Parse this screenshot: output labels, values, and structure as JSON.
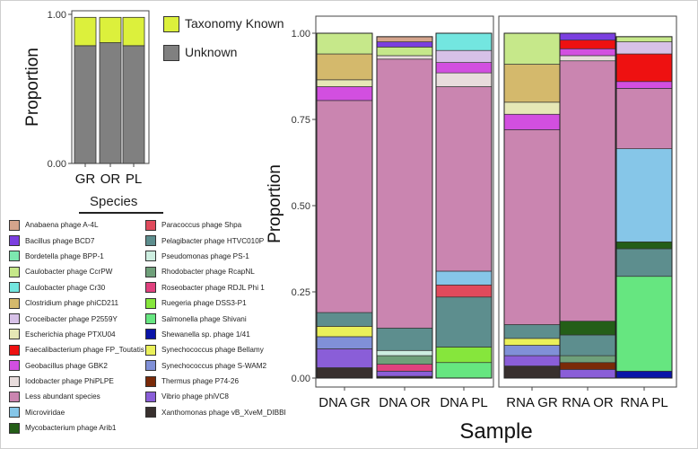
{
  "chart_data": [
    {
      "type": "bar",
      "stacked": true,
      "title": "",
      "xlabel": "",
      "ylabel": "Proportion",
      "ylim": [
        0,
        1
      ],
      "yticks": [
        "0.00",
        "1.00"
      ],
      "categories": [
        "GR",
        "OR",
        "PL"
      ],
      "series": [
        {
          "name": "Unknown",
          "color": "#808080",
          "values": [
            0.79,
            0.81,
            0.79
          ]
        },
        {
          "name": "Taxonomy Known",
          "color": "#dcf03c",
          "values": [
            0.19,
            0.17,
            0.19
          ]
        }
      ],
      "legend": [
        "Taxonomy Known",
        "Unknown"
      ]
    },
    {
      "type": "bar",
      "stacked": true,
      "xlabel": "Sample",
      "ylabel": "Proportion",
      "ylim": [
        0,
        1
      ],
      "yticks": [
        "0.00",
        "0.25",
        "0.50",
        "0.75",
        "1.00"
      ],
      "panels": [
        {
          "name": "DNA",
          "categories": [
            "DNA GR",
            "DNA OR",
            "DNA PL"
          ]
        },
        {
          "name": "RNA",
          "categories": [
            "RNA GR",
            "RNA OR",
            "RNA PL"
          ]
        }
      ],
      "categories": [
        "DNA GR",
        "DNA OR",
        "DNA PL",
        "RNA GR",
        "RNA OR",
        "RNA PL"
      ],
      "legend_title": "Species",
      "species": [
        {
          "name": "Anabaena phage A-4L",
          "color": "#d4a48c"
        },
        {
          "name": "Bacillus phage BCD7",
          "color": "#7b3fe0"
        },
        {
          "name": "Bordetella phage BPP-1",
          "color": "#7de8b0"
        },
        {
          "name": "Caulobacter phage CcrPW",
          "color": "#c6e88a"
        },
        {
          "name": "Caulobacter phage Cr30",
          "color": "#73e6e0"
        },
        {
          "name": "Clostridium phage phiCD211",
          "color": "#d4b96c"
        },
        {
          "name": "Croceibacter phage P2559Y",
          "color": "#d7c1e8"
        },
        {
          "name": "Escherichia phage PTXU04",
          "color": "#e6e8b6"
        },
        {
          "name": "Faecalibacterium phage FP_Toutatis",
          "color": "#ee1111"
        },
        {
          "name": "Geobacillus phage GBK2",
          "color": "#d24fe0"
        },
        {
          "name": "Iodobacter phage PhiPLPE",
          "color": "#e8dcdc"
        },
        {
          "name": "Less abundant species",
          "color": "#ca85b0"
        },
        {
          "name": "Microviridae",
          "color": "#86c6e8"
        },
        {
          "name": "Mycobacterium phage Arib1",
          "color": "#245e18"
        },
        {
          "name": "Paracoccus phage Shpa",
          "color": "#e04a5c"
        },
        {
          "name": "Pelagibacter phage HTVC010P",
          "color": "#5d8e8e"
        },
        {
          "name": "Pseudomonas phage PS-1",
          "color": "#cdeee0"
        },
        {
          "name": "Rhodobacter phage RcapNL",
          "color": "#6fa07a"
        },
        {
          "name": "Roseobacter phage RDJL Phi 1",
          "color": "#e0417e"
        },
        {
          "name": "Ruegeria phage DSS3-P1",
          "color": "#86e63c"
        },
        {
          "name": "Salmonella phage Shivani",
          "color": "#66e680"
        },
        {
          "name": "Shewanella sp. phage 1/41",
          "color": "#0a14a8"
        },
        {
          "name": "Synechococcus phage Bellamy",
          "color": "#eaf05a"
        },
        {
          "name": "Synechococcus phage S-WAM2",
          "color": "#8090d8"
        },
        {
          "name": "Thermus phage P74-26",
          "color": "#7a2a08"
        },
        {
          "name": "Vibrio phage phiVC8",
          "color": "#8a5ed8"
        },
        {
          "name": "Xanthomonas phage vB_XveM_DIBBI",
          "color": "#38302e"
        }
      ],
      "stacks": [
        [
          {
            "species": "Xanthomonas phage vB_XveM_DIBBI",
            "value": 0.03
          },
          {
            "species": "Vibrio phage phiVC8",
            "value": 0.055
          },
          {
            "species": "Synechococcus phage S-WAM2",
            "value": 0.035
          },
          {
            "species": "Synechococcus phage Bellamy",
            "value": 0.03
          },
          {
            "species": "Pelagibacter phage HTVC010P",
            "value": 0.04
          },
          {
            "species": "Less abundant species",
            "value": 0.615
          },
          {
            "species": "Geobacillus phage GBK2",
            "value": 0.04
          },
          {
            "species": "Escherichia phage PTXU04",
            "value": 0.02
          },
          {
            "species": "Clostridium phage phiCD211",
            "value": 0.075
          },
          {
            "species": "Caulobacter phage CcrPW",
            "value": 0.06
          }
        ],
        [
          {
            "species": "Xanthomonas phage vB_XveM_DIBBI",
            "value": 0.005
          },
          {
            "species": "Vibrio phage phiVC8",
            "value": 0.015
          },
          {
            "species": "Roseobacter phage RDJL Phi 1",
            "value": 0.02
          },
          {
            "species": "Rhodobacter phage RcapNL",
            "value": 0.025
          },
          {
            "species": "Pseudomonas phage PS-1",
            "value": 0.015
          },
          {
            "species": "Pelagibacter phage HTVC010P",
            "value": 0.065
          },
          {
            "species": "Less abundant species",
            "value": 0.78
          },
          {
            "species": "Iodobacter phage PhiPLPE",
            "value": 0.01
          },
          {
            "species": "Caulobacter phage CcrPW",
            "value": 0.025
          },
          {
            "species": "Bacillus phage BCD7",
            "value": 0.015
          },
          {
            "species": "Anabaena phage A-4L",
            "value": 0.015
          }
        ],
        [
          {
            "species": "Salmonella phage Shivani",
            "value": 0.045
          },
          {
            "species": "Ruegeria phage DSS3-P1",
            "value": 0.045
          },
          {
            "species": "Pelagibacter phage HTVC010P",
            "value": 0.145
          },
          {
            "species": "Paracoccus phage Shpa",
            "value": 0.035
          },
          {
            "species": "Microviridae",
            "value": 0.04
          },
          {
            "species": "Less abundant species",
            "value": 0.535
          },
          {
            "species": "Iodobacter phage PhiPLPE",
            "value": 0.04
          },
          {
            "species": "Geobacillus phage GBK2",
            "value": 0.03
          },
          {
            "species": "Croceibacter phage P2559Y",
            "value": 0.035
          },
          {
            "species": "Caulobacter phage Cr30",
            "value": 0.05
          }
        ],
        [
          {
            "species": "Xanthomonas phage vB_XveM_DIBBI",
            "value": 0.035
          },
          {
            "species": "Vibrio phage phiVC8",
            "value": 0.03
          },
          {
            "species": "Synechococcus phage S-WAM2",
            "value": 0.03
          },
          {
            "species": "Synechococcus phage Bellamy",
            "value": 0.02
          },
          {
            "species": "Pelagibacter phage HTVC010P",
            "value": 0.04
          },
          {
            "species": "Less abundant species",
            "value": 0.565
          },
          {
            "species": "Geobacillus phage GBK2",
            "value": 0.045
          },
          {
            "species": "Escherichia phage PTXU04",
            "value": 0.035
          },
          {
            "species": "Clostridium phage phiCD211",
            "value": 0.11
          },
          {
            "species": "Caulobacter phage CcrPW",
            "value": 0.09
          }
        ],
        [
          {
            "species": "Vibrio phage phiVC8",
            "value": 0.025
          },
          {
            "species": "Thermus phage P74-26",
            "value": 0.02
          },
          {
            "species": "Rhodobacter phage RcapNL",
            "value": 0.02
          },
          {
            "species": "Pelagibacter phage HTVC010P",
            "value": 0.06
          },
          {
            "species": "Mycobacterium phage Arib1",
            "value": 0.04
          },
          {
            "species": "Less abundant species",
            "value": 0.755
          },
          {
            "species": "Iodobacter phage PhiPLPE",
            "value": 0.015
          },
          {
            "species": "Geobacillus phage GBK2",
            "value": 0.02
          },
          {
            "species": "Faecalibacterium phage FP_Toutatis",
            "value": 0.025
          },
          {
            "species": "Bacillus phage BCD7",
            "value": 0.02
          }
        ],
        [
          {
            "species": "Shewanella sp. phage 1/41",
            "value": 0.02
          },
          {
            "species": "Salmonella phage Shivani",
            "value": 0.275
          },
          {
            "species": "Pelagibacter phage HTVC010P",
            "value": 0.08
          },
          {
            "species": "Mycobacterium phage Arib1",
            "value": 0.02
          },
          {
            "species": "Microviridae",
            "value": 0.27
          },
          {
            "species": "Less abundant species",
            "value": 0.175
          },
          {
            "species": "Geobacillus phage GBK2",
            "value": 0.02
          },
          {
            "species": "Faecalibacterium phage FP_Toutatis",
            "value": 0.08
          },
          {
            "species": "Croceibacter phage P2559Y",
            "value": 0.035
          },
          {
            "species": "Caulobacter phage CcrPW",
            "value": 0.015
          }
        ]
      ]
    }
  ]
}
